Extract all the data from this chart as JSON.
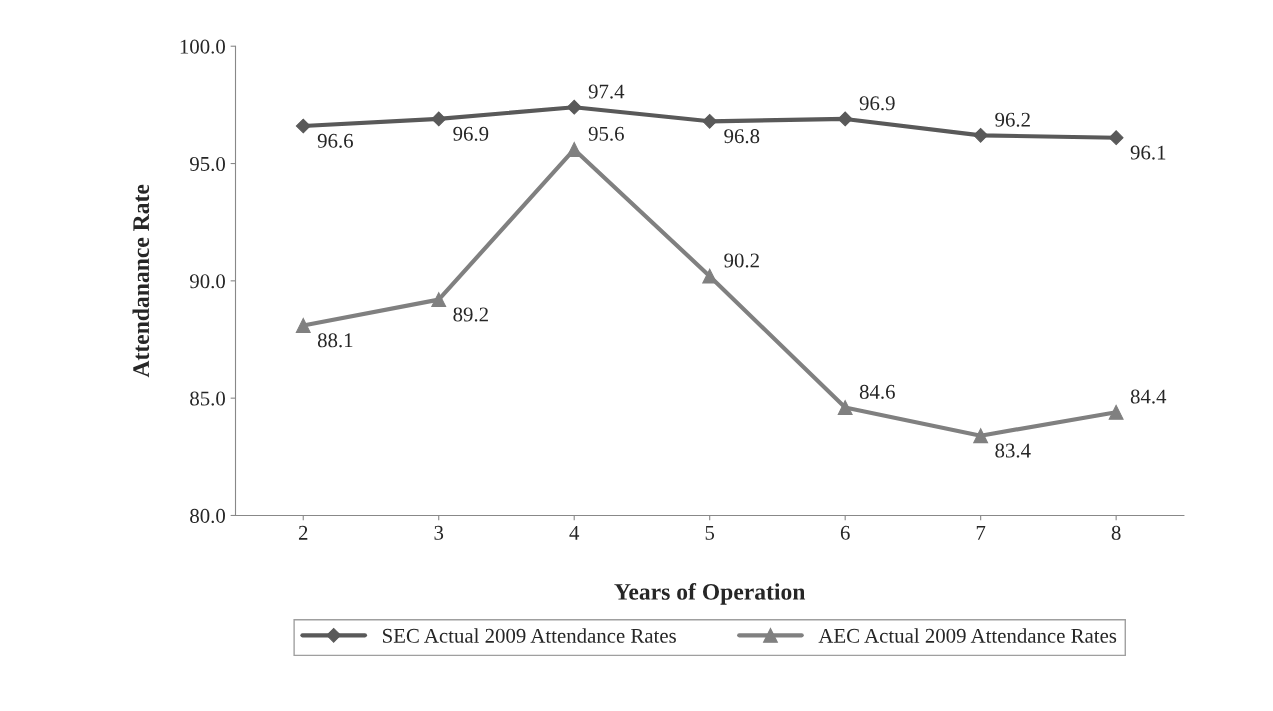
{
  "chart_data": {
    "type": "line",
    "xlabel": "Years of Operation",
    "ylabel": "Attendanance Rate",
    "categories": [
      "2",
      "3",
      "4",
      "5",
      "6",
      "7",
      "8"
    ],
    "series": [
      {
        "name": "SEC Actual 2009 Attendance Rates",
        "color": "#595959",
        "marker": "diamond",
        "values": [
          96.6,
          96.9,
          97.4,
          96.8,
          96.9,
          96.2,
          96.1
        ]
      },
      {
        "name": "AEC Actual 2009 Attendance Rates",
        "color": "#808080",
        "marker": "triangle",
        "values": [
          88.1,
          89.2,
          95.6,
          90.2,
          84.6,
          83.4,
          84.4
        ]
      }
    ],
    "ylim": [
      80,
      100
    ],
    "yticks": [
      {
        "value": 80,
        "label": "80.0"
      },
      {
        "value": 85,
        "label": "85.0"
      },
      {
        "value": 90,
        "label": "90.0"
      },
      {
        "value": 95,
        "label": "95.0"
      },
      {
        "value": 100,
        "label": "100.0"
      }
    ],
    "data_labels": true,
    "grid": false,
    "legend": "bottom",
    "line_style": "solid"
  }
}
